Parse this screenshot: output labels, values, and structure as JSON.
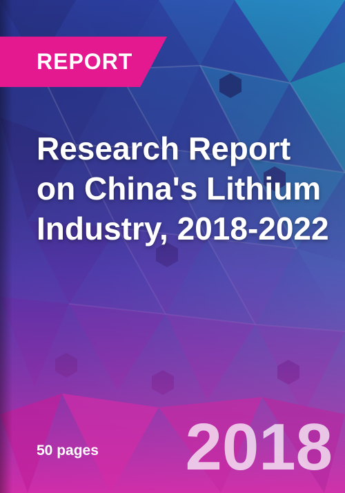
{
  "ribbon": {
    "label": "REPORT"
  },
  "title": "Research Report on China's Lithium Industry, 2018-2022",
  "meta": {
    "pages": "50 pages",
    "year": "2018"
  },
  "colors": {
    "accent": "#e4198f",
    "deep_blue": "#1d2b6e",
    "teal": "#1fc4d1",
    "purple": "#7a3fb0",
    "magenta": "#d62aa5"
  }
}
